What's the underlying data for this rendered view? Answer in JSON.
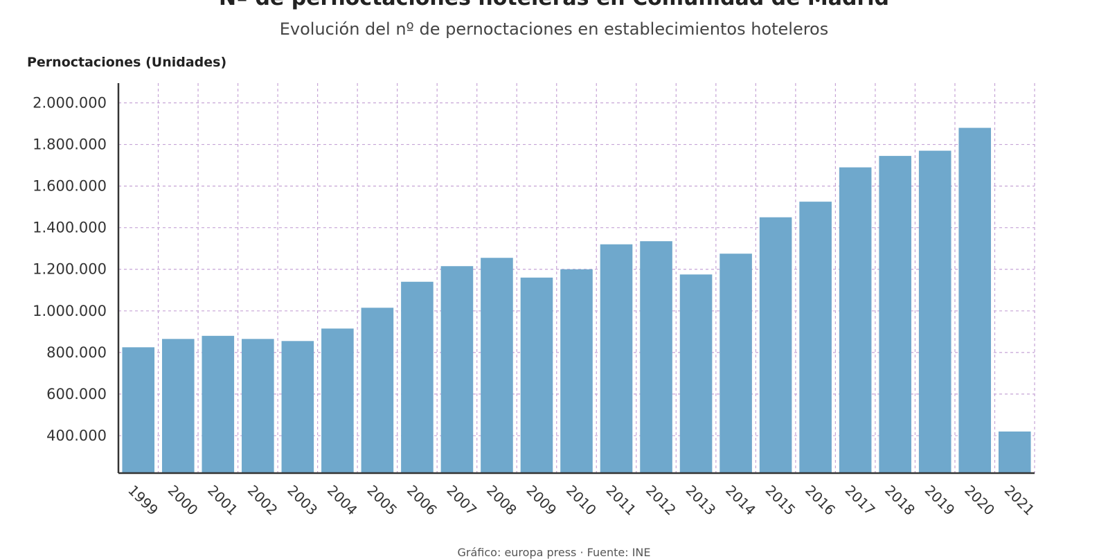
{
  "chart_data": {
    "type": "bar",
    "title": "Nº de pernoctaciones hoteleras en Comunidad de Madrid",
    "subtitle": "Evolución del nº de pernoctaciones en establecimientos hoteleros",
    "ylabel": "Pernoctaciones (Unidades)",
    "xlabel": "",
    "categories": [
      "1999",
      "2000",
      "2001",
      "2002",
      "2003",
      "2004",
      "2005",
      "2006",
      "2007",
      "2008",
      "2009",
      "2010",
      "2011",
      "2012",
      "2013",
      "2014",
      "2015",
      "2016",
      "2017",
      "2018",
      "2019",
      "2020",
      "2021"
    ],
    "values": [
      825000,
      865000,
      880000,
      865000,
      855000,
      915000,
      1015000,
      1140000,
      1215000,
      1255000,
      1160000,
      1200000,
      1320000,
      1335000,
      1175000,
      1275000,
      1450000,
      1525000,
      1690000,
      1745000,
      1770000,
      1880000,
      420000
    ],
    "ylim": [
      220000,
      2095000
    ],
    "yticks": [
      400000,
      600000,
      800000,
      1000000,
      1200000,
      1400000,
      1600000,
      1800000,
      2000000
    ],
    "ytick_labels": [
      "400.000",
      "600.000",
      "800.000",
      "1.000.000",
      "1.200.000",
      "1.400.000",
      "1.600.000",
      "1.800.000",
      "2.000.000"
    ],
    "grid": true,
    "colors": {
      "bar": "#6fa8cc",
      "grid": "#c6a4d6",
      "axis": "#333333"
    }
  },
  "footer": "Gráfico: europa press · Fuente: INE"
}
